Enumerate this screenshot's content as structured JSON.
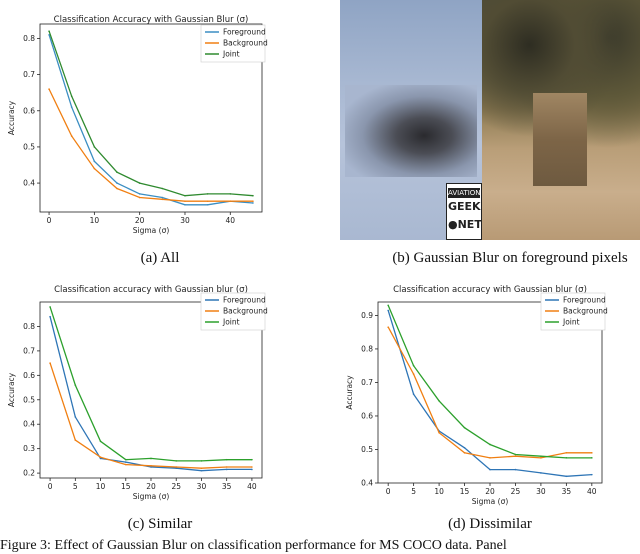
{
  "chart_data": [
    {
      "id": "all",
      "type": "line",
      "title": "Classification Accuracy with Gaussian Blur (σ)",
      "xlabel": "Sigma (σ)",
      "ylabel": "Accuracy",
      "xlim": [
        -2,
        47
      ],
      "ylim": [
        0.32,
        0.84
      ],
      "xticks": [
        0,
        10,
        20,
        30,
        40
      ],
      "yticks": [
        0.4,
        0.5,
        0.6,
        0.7,
        0.8
      ],
      "ytick_labels": [
        "0.4",
        "0.5",
        "0.6",
        "0.7",
        "0.8"
      ],
      "legend_position": "top-right",
      "x": [
        0,
        5,
        10,
        15,
        20,
        25,
        30,
        35,
        40,
        45
      ],
      "series": [
        {
          "name": "Foreground",
          "color": "#3b8ec2",
          "values": [
            0.81,
            0.61,
            0.46,
            0.4,
            0.37,
            0.36,
            0.34,
            0.34,
            0.35,
            0.345
          ]
        },
        {
          "name": "Background",
          "color": "#f07f12",
          "values": [
            0.66,
            0.53,
            0.44,
            0.385,
            0.36,
            0.355,
            0.35,
            0.35,
            0.35,
            0.35
          ]
        },
        {
          "name": "Joint",
          "color": "#2f8a2f",
          "values": [
            0.82,
            0.64,
            0.5,
            0.43,
            0.4,
            0.385,
            0.365,
            0.37,
            0.37,
            0.365
          ]
        }
      ]
    },
    {
      "id": "similar",
      "type": "line",
      "title": "Classification accuracy with Gaussian blur (σ)",
      "xlabel": "Sigma (σ)",
      "ylabel": "Accuracy",
      "xlim": [
        -2,
        42
      ],
      "ylim": [
        0.18,
        0.9
      ],
      "xticks": [
        0,
        5,
        10,
        15,
        20,
        25,
        30,
        35,
        40
      ],
      "yticks": [
        0.2,
        0.3,
        0.4,
        0.5,
        0.6,
        0.7,
        0.8
      ],
      "ytick_labels": [
        "0.2",
        "0.3",
        "0.4",
        "0.5",
        "0.6",
        "0.7",
        "0.8"
      ],
      "legend_position": "top-right",
      "x": [
        0,
        5,
        10,
        15,
        20,
        25,
        30,
        35,
        40
      ],
      "series": [
        {
          "name": "Foreground",
          "color": "#2e75b6",
          "values": [
            0.84,
            0.43,
            0.26,
            0.245,
            0.225,
            0.22,
            0.21,
            0.215,
            0.215
          ]
        },
        {
          "name": "Background",
          "color": "#f07f12",
          "values": [
            0.65,
            0.335,
            0.265,
            0.235,
            0.23,
            0.225,
            0.22,
            0.225,
            0.225
          ]
        },
        {
          "name": "Joint",
          "color": "#2ca02c",
          "values": [
            0.88,
            0.56,
            0.33,
            0.255,
            0.26,
            0.25,
            0.25,
            0.255,
            0.255
          ]
        }
      ]
    },
    {
      "id": "dissimilar",
      "type": "line",
      "title": "Classification accuracy with Gaussian blur (σ)",
      "xlabel": "Sigma (σ)",
      "ylabel": "Accuracy",
      "xlim": [
        -2,
        42
      ],
      "ylim": [
        0.4,
        0.94
      ],
      "xticks": [
        0,
        5,
        10,
        15,
        20,
        25,
        30,
        35,
        40
      ],
      "yticks": [
        0.4,
        0.5,
        0.6,
        0.7,
        0.8,
        0.9
      ],
      "ytick_labels": [
        "0.4",
        "0.5",
        "0.6",
        "0.7",
        "0.8",
        "0.9"
      ],
      "legend_position": "top-right",
      "x": [
        0,
        5,
        10,
        15,
        20,
        25,
        30,
        35,
        40
      ],
      "series": [
        {
          "name": "Foreground",
          "color": "#2e75b6",
          "values": [
            0.915,
            0.665,
            0.555,
            0.505,
            0.44,
            0.44,
            0.43,
            0.42,
            0.425
          ]
        },
        {
          "name": "Background",
          "color": "#f07f12",
          "values": [
            0.865,
            0.725,
            0.55,
            0.49,
            0.475,
            0.48,
            0.475,
            0.49,
            0.49
          ]
        },
        {
          "name": "Joint",
          "color": "#2ca02c",
          "values": [
            0.93,
            0.75,
            0.645,
            0.565,
            0.515,
            0.485,
            0.48,
            0.475,
            0.475
          ]
        }
      ]
    }
  ],
  "photo": {
    "logo_line1": "AVIATION",
    "logo_line2": "GEEK",
    "logo_line3": "●NET"
  },
  "captions": {
    "a": "(a) All",
    "b": "(b) Gaussian Blur on foreground pixels",
    "c": "(c) Similar",
    "d": "(d) Dissimilar",
    "figure": "Figure 3: Effect of Gaussian Blur on classification performance for MS COCO data. Panel"
  }
}
